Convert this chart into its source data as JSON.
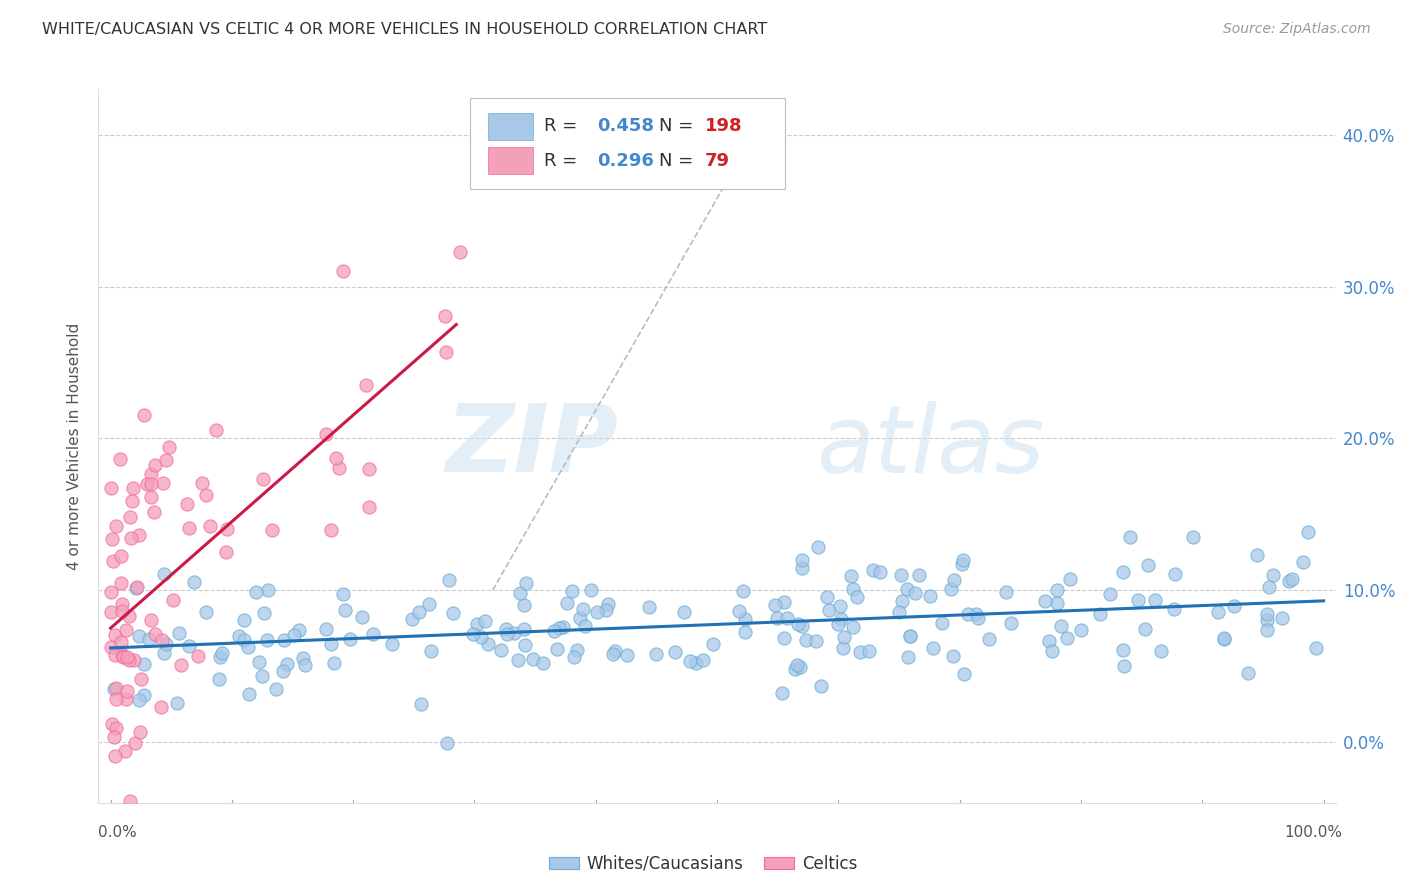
{
  "title": "WHITE/CAUCASIAN VS CELTIC 4 OR MORE VEHICLES IN HOUSEHOLD CORRELATION CHART",
  "source": "Source: ZipAtlas.com",
  "ylabel": "4 or more Vehicles in Household",
  "xlim": [
    -0.01,
    1.01
  ],
  "ylim": [
    -0.04,
    0.43
  ],
  "yticks": [
    0.0,
    0.1,
    0.2,
    0.3,
    0.4
  ],
  "ytick_labels": [
    "0.0%",
    "10.0%",
    "20.0%",
    "30.0%",
    "40.0%"
  ],
  "xticks": [
    0.0,
    0.1,
    0.2,
    0.3,
    0.4,
    0.5,
    0.6,
    0.7,
    0.8,
    0.9,
    1.0
  ],
  "xtick_labels": [
    "0.0%",
    "",
    "",
    "",
    "",
    "",
    "",
    "",
    "",
    "",
    "100.0%"
  ],
  "blue_color": "#a8c8e8",
  "pink_color": "#f4a0b8",
  "blue_edge_color": "#6baed6",
  "pink_edge_color": "#f768a1",
  "blue_line_color": "#2171b5",
  "pink_line_color": "#cb1b45",
  "blue_R": 0.458,
  "blue_N": 198,
  "pink_R": 0.296,
  "pink_N": 79,
  "watermark_zip": "ZIP",
  "watermark_atlas": "atlas",
  "background_color": "#ffffff",
  "grid_color": "#cccccc",
  "legend_label_blue": "Whites/Caucasians",
  "legend_label_pink": "Celtics",
  "title_color": "#333333",
  "right_tick_color": "#4488cc",
  "legend_R_color": "#333333",
  "legend_val_color": "#4488cc",
  "legend_N_val_color": "#cc2222",
  "blue_line_x": [
    0.0,
    1.0
  ],
  "blue_line_y": [
    0.062,
    0.093
  ],
  "pink_line_x": [
    0.0,
    0.285
  ],
  "pink_line_y": [
    0.075,
    0.275
  ],
  "diag_line_x": [
    0.315,
    0.53
  ],
  "diag_line_y": [
    0.1,
    0.4
  ]
}
